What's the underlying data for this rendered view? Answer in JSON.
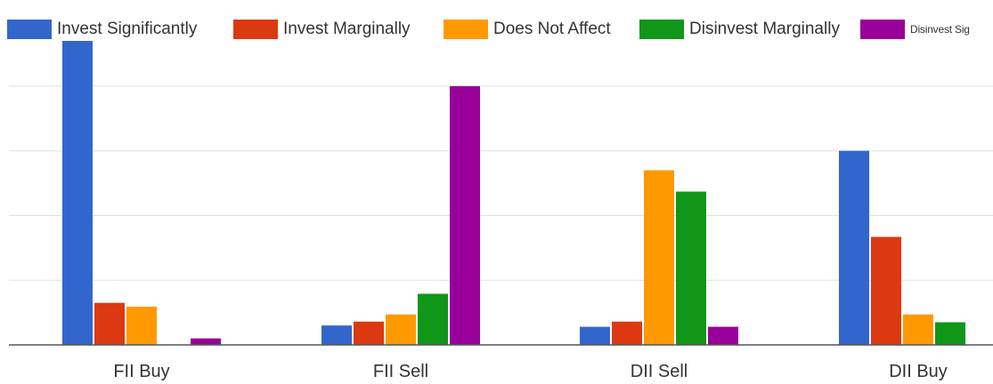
{
  "chart_data": {
    "type": "bar",
    "title": "",
    "xlabel": "",
    "ylabel": "",
    "categories": [
      "FII Buy",
      "FII Sell",
      "DII Sell",
      "DII Buy"
    ],
    "series": [
      {
        "name": "Invest Significantly",
        "color": "#3366cc",
        "values": [
          47,
          3,
          2.8,
          30
        ]
      },
      {
        "name": "Invest Marginally",
        "color": "#dc3912",
        "values": [
          6.5,
          3.6,
          3.6,
          16.7
        ]
      },
      {
        "name": "Does Not Affect",
        "color": "#ff9900",
        "values": [
          5.9,
          4.7,
          27,
          4.7
        ]
      },
      {
        "name": "Disinvest Marginally",
        "color": "#109618",
        "values": [
          0,
          7.9,
          23.7,
          3.5
        ]
      },
      {
        "name": "Disinvest Significantly",
        "legend_label": "Disinvest Sig",
        "color": "#990099",
        "values": [
          1,
          40,
          2.8,
          0
        ]
      }
    ],
    "ylim": [
      0,
      47
    ],
    "gridlines": [
      10,
      20,
      30,
      40
    ],
    "grid": true,
    "legend": "top"
  }
}
